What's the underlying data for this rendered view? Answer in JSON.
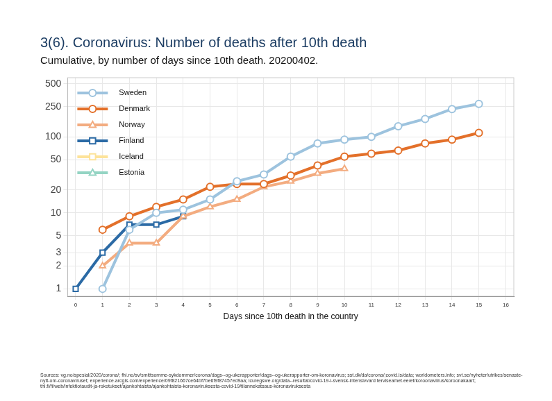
{
  "chart_data": {
    "type": "line",
    "title": "3(6). Coronavirus: Number of deaths after 10th death",
    "subtitle": "Cumulative, by number of days since 10th death. 20200402.",
    "x_label": "Days since 10th death in the country",
    "sources": "Sources: vg.no/spesial/2020/corona/; fhi.no/sv/smittsomme-sykdommer/corona/dags--og-ukerapporter/dags--og-ukerapporter-om-koronavirus; sst.dk/da/corona/;covid.is/data; worldometers.info; svt.se/nyheter/utrikes/senaste-nytt-om-coronaviruset; experience.arcgis.com/experience/09f821667ce64bf7be6f9f87457ed9aa; icuregswe.org/data--resultat/covid-19-i-svensk-intensivvard terviseamet.ee/et/koroonaviirus/koroonakaart; thl.fi/fi/web/infektiotaudit-ja-rokotukset/ajankohtaista/ajankohtaista-koronaviruksesta-covid-19/tilannekatsaus-koronaviruksesta",
    "x": [
      0,
      1,
      2,
      3,
      4,
      5,
      6,
      7,
      8,
      9,
      10,
      11,
      12,
      13,
      14,
      15
    ],
    "series": [
      {
        "name": "Sweden",
        "color": "#9dc3de",
        "marker": "circle",
        "values": [
          null,
          1,
          6,
          10,
          11,
          15,
          26,
          32,
          55,
          82,
          92,
          100,
          138,
          172,
          232,
          272
        ]
      },
      {
        "name": "Denmark",
        "color": "#e3702a",
        "marker": "circle",
        "values": [
          null,
          6,
          9,
          12,
          15,
          22,
          24,
          24,
          31,
          42,
          55,
          60,
          66,
          82,
          92,
          113
        ]
      },
      {
        "name": "Norway",
        "color": "#f3ac80",
        "marker": "triangle",
        "values": [
          null,
          2,
          4,
          4,
          9,
          12,
          15,
          22,
          26,
          33,
          38,
          null,
          null,
          null,
          null,
          null
        ]
      },
      {
        "name": "Finland",
        "color": "#2b6aa5",
        "marker": "square",
        "values": [
          1,
          3,
          7,
          7,
          9,
          null,
          null,
          null,
          null,
          null,
          null,
          null,
          null,
          null,
          null,
          null
        ]
      },
      {
        "name": "Iceland",
        "color": "#fde39a",
        "marker": "square",
        "values": [
          null,
          null,
          null,
          null,
          null,
          null,
          null,
          null,
          null,
          null,
          null,
          null,
          null,
          null,
          null,
          null
        ]
      },
      {
        "name": "Estonia",
        "color": "#94d4c3",
        "marker": "triangle",
        "values": [
          null,
          null,
          null,
          null,
          null,
          null,
          null,
          null,
          null,
          null,
          null,
          null,
          null,
          null,
          null,
          null
        ]
      }
    ],
    "xlim": [
      -0.3,
      16.3
    ],
    "xticks": [
      0,
      1,
      2,
      3,
      4,
      5,
      6,
      7,
      8,
      9,
      10,
      11,
      12,
      13,
      14,
      15,
      16
    ],
    "ylim": [
      0.8,
      600
    ],
    "yticks": [
      1,
      2,
      3,
      5,
      10,
      20,
      50,
      100,
      250,
      500
    ],
    "log": "y",
    "grid": true,
    "legend": "top-left"
  }
}
